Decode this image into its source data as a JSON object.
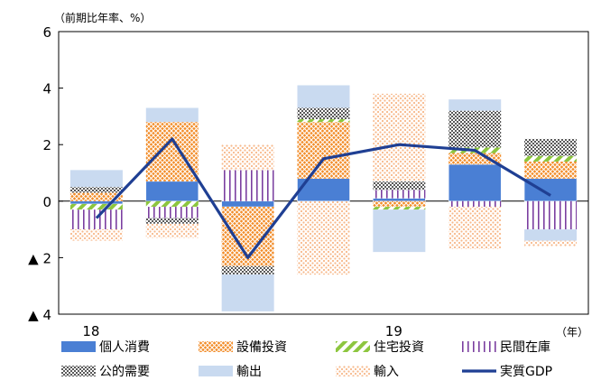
{
  "chart_data": {
    "type": "bar",
    "stacked": true,
    "ylabel": "（前期比年率、%）",
    "xunit_label": "（年）",
    "ylim": [
      -4,
      6
    ],
    "yticks": [
      {
        "value": 6,
        "label": "6"
      },
      {
        "value": 4,
        "label": "4"
      },
      {
        "value": 2,
        "label": "2"
      },
      {
        "value": 0,
        "label": "0"
      },
      {
        "value": -2,
        "label": "▲ 2"
      },
      {
        "value": -4,
        "label": "▲ 4"
      }
    ],
    "x_tick_labels": [
      {
        "index": 0,
        "label": "18"
      },
      {
        "index": 4,
        "label": "19"
      }
    ],
    "categories": [
      "2018Q1",
      "2018Q2",
      "2018Q3",
      "2018Q4",
      "2019Q1",
      "2019Q2",
      "2019Q3"
    ],
    "series": [
      {
        "name": "個人消費",
        "color": "#4A7FD4",
        "pattern": "solid",
        "values": [
          -0.1,
          0.7,
          -0.2,
          0.8,
          0.1,
          1.3,
          0.8
        ]
      },
      {
        "name": "設備投資",
        "color": "#F28C28",
        "pattern": "cross",
        "values": [
          0.3,
          2.1,
          -2.1,
          2.0,
          -0.2,
          0.4,
          0.6
        ]
      },
      {
        "name": "住宅投資",
        "color": "#8DC63F",
        "pattern": "diagonal",
        "values": [
          -0.2,
          -0.2,
          0.0,
          0.1,
          -0.1,
          0.2,
          0.2
        ]
      },
      {
        "name": "民間在庫",
        "color": "#7B3FA0",
        "pattern": "vertical",
        "values": [
          -0.7,
          -0.4,
          1.1,
          0.0,
          0.3,
          -0.2,
          -1.0
        ]
      },
      {
        "name": "公的需要",
        "color": "#595959",
        "pattern": "checker",
        "values": [
          0.2,
          -0.2,
          -0.3,
          0.4,
          0.3,
          1.3,
          0.6
        ]
      },
      {
        "name": "輸出",
        "color": "#C9DAF0",
        "pattern": "light",
        "values": [
          0.6,
          0.5,
          -1.3,
          0.8,
          -1.5,
          0.4,
          -0.4
        ]
      },
      {
        "name": "輸入",
        "color": "#F7B98B",
        "pattern": "dots",
        "values": [
          -0.4,
          -0.5,
          0.9,
          -2.6,
          3.1,
          -1.5,
          -0.2
        ]
      }
    ],
    "line_series": {
      "name": "実質GDP",
      "color": "#1F3F93",
      "values": [
        -0.6,
        2.2,
        -2.0,
        1.5,
        2.0,
        1.8,
        0.2
      ]
    },
    "legend": {
      "position": "bottom",
      "columns": 4
    }
  }
}
